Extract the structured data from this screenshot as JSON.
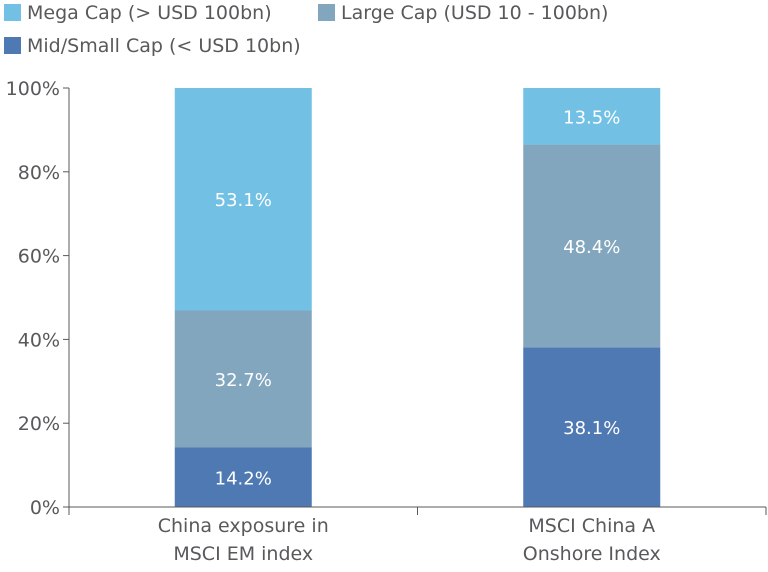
{
  "chart_data": {
    "type": "bar",
    "stacked": true,
    "categories": [
      [
        "China exposure in",
        "MSCI EM index"
      ],
      [
        "MSCI China A",
        "Onshore Index"
      ]
    ],
    "series": [
      {
        "name": "Mid/Small Cap (< USD 10bn)",
        "values": [
          14.2,
          38.1
        ],
        "labels": [
          "14.2%",
          "38.1%"
        ],
        "color": "#4f79b3"
      },
      {
        "name": "Large Cap (USD 10 - 100bn)",
        "values": [
          32.7,
          48.4
        ],
        "labels": [
          "32.7%",
          "48.4%"
        ],
        "color": "#82a6bd"
      },
      {
        "name": "Mega Cap (> USD 100bn)",
        "values": [
          53.1,
          13.5
        ],
        "labels": [
          "53.1%",
          "13.5%"
        ],
        "color": "#72c1e4"
      }
    ],
    "legend_order": [
      2,
      1,
      0
    ],
    "ylim": [
      0,
      100
    ],
    "yticks": [
      "0%",
      "20%",
      "40%",
      "60%",
      "80%",
      "100%"
    ],
    "grid": false,
    "legend_position": "top-left"
  }
}
